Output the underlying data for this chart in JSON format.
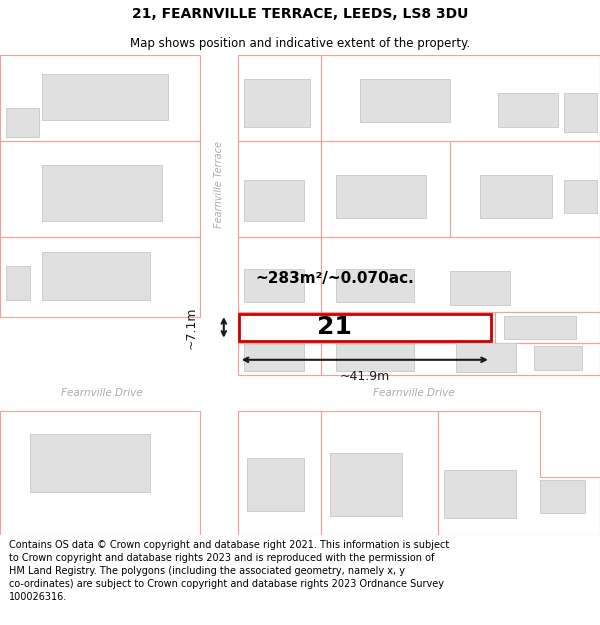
{
  "title": "21, FEARNVILLE TERRACE, LEEDS, LS8 3DU",
  "subtitle": "Map shows position and indicative extent of the property.",
  "footer": "Contains OS data © Crown copyright and database right 2021. This information is subject\nto Crown copyright and database rights 2023 and is reproduced with the permission of\nHM Land Registry. The polygons (including the associated geometry, namely x, y\nco-ordinates) are subject to Crown copyright and database rights 2023 Ordnance Survey\n100026316.",
  "map_bg": "#ffffff",
  "plot_line_color": "#f0a0a0",
  "building_fill": "#e0e0e0",
  "building_edge": "#cccccc",
  "highlight_fill": "#ffffff",
  "highlight_edge": "#cc0000",
  "street_label_color": "#aaaaaa",
  "measurement_color": "#1a1a1a",
  "area_text": "~283m²/~0.070ac.",
  "label_21": "21",
  "dim_width": "~41.9m",
  "dim_height": "~7.1m",
  "street_terrace": "Fearnville Terrace",
  "street_drive_left": "Fearnville Drive",
  "street_drive_right": "Fearnville Drive",
  "title_fontsize": 10,
  "subtitle_fontsize": 8.5,
  "footer_fontsize": 7.0
}
